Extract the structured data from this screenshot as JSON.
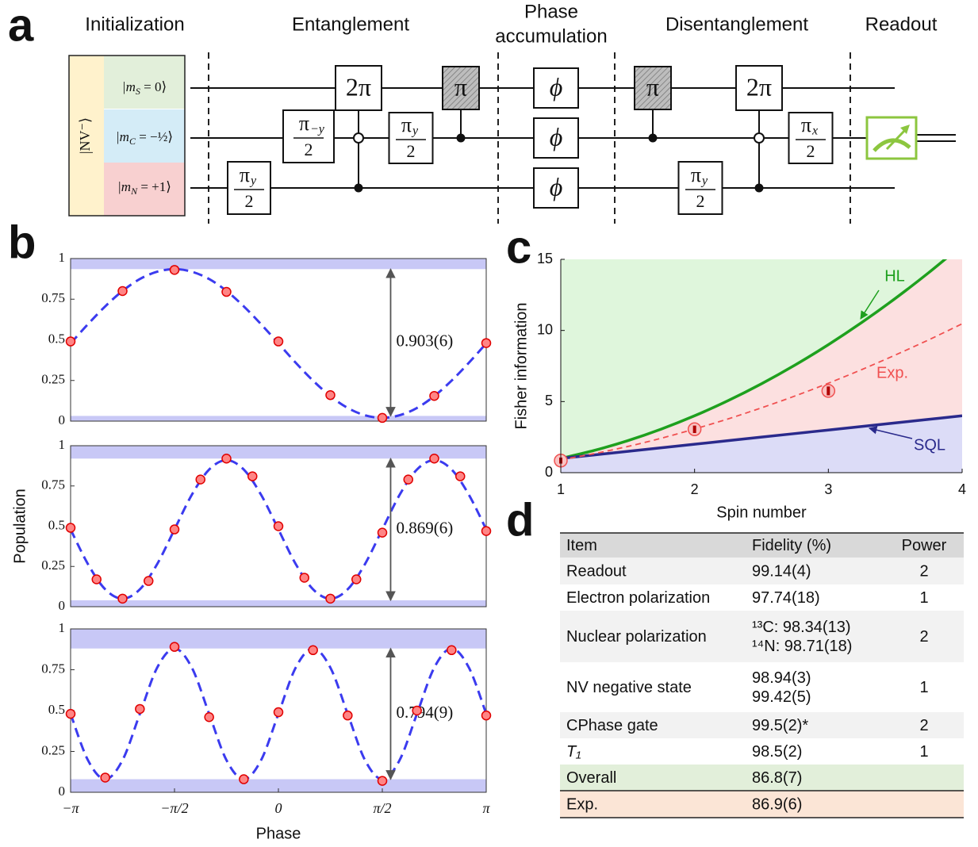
{
  "panel_labels": [
    "a",
    "b",
    "c",
    "d"
  ],
  "circuit": {
    "stages": [
      [
        "Initialization"
      ],
      [
        "Entanglement"
      ],
      [
        "Phase",
        "accumulation"
      ],
      [
        "Disentanglement"
      ],
      [
        "Readout"
      ]
    ],
    "register": "|NV⁻⟩",
    "states": [
      [
        "|m",
        "S",
        " = 0⟩"
      ],
      [
        "|m",
        "C",
        " = −½⟩"
      ],
      [
        "|m",
        "N",
        " = +1⟩"
      ]
    ],
    "gates": [
      {
        "num": "π",
        "sub": "y",
        "den": "2"
      },
      {
        "num": "π",
        "sub": "−y",
        "den": "2"
      },
      {
        "label": "2π"
      },
      {
        "num": "π",
        "sub": "y",
        "den": "2"
      },
      {
        "label": "π"
      },
      {
        "label": "ϕ"
      },
      {
        "label": "ϕ"
      },
      {
        "label": "ϕ"
      },
      {
        "label": "π"
      },
      {
        "num": "π",
        "sub": "y",
        "den": "2"
      },
      {
        "label": "2π"
      },
      {
        "num": "π",
        "sub": "x",
        "den": "2"
      }
    ]
  },
  "chart_data": [
    {
      "type": "scatter",
      "xlim": [
        -3.14159,
        3.14159
      ],
      "ylim": [
        0,
        1
      ],
      "yticks": [
        0,
        0.25,
        0.5,
        0.75,
        1
      ],
      "x": [
        -3.14159,
        -2.35619,
        -1.5708,
        -0.7854,
        0,
        0.7854,
        1.5708,
        2.35619,
        3.14159
      ],
      "values": [
        0.49,
        0.8,
        0.93,
        0.795,
        0.49,
        0.16,
        0.02,
        0.155,
        0.48
      ],
      "color": "#e00000",
      "fit_x": [
        -3.14159,
        -2.87979,
        -2.61799,
        -2.35619,
        -2.0944,
        -1.8326,
        -1.5708,
        -1.309,
        -1.0472,
        -0.7854,
        -0.5236,
        -0.2618,
        0,
        0.2618,
        0.5236,
        0.7854,
        1.0472,
        1.309,
        1.5708,
        1.8326,
        2.0944,
        2.35619,
        2.61799,
        2.87979,
        3.14159
      ],
      "fit": [
        0.478,
        0.596,
        0.706,
        0.801,
        0.874,
        0.919,
        0.935,
        0.919,
        0.874,
        0.801,
        0.706,
        0.596,
        0.478,
        0.359,
        0.249,
        0.154,
        0.081,
        0.036,
        0.02,
        0.036,
        0.081,
        0.154,
        0.249,
        0.359,
        0.478
      ],
      "fit_color": "#3b3bef",
      "bands": [
        [
          0.935,
          1
        ],
        [
          0,
          0.032
        ]
      ],
      "band_color": "#c8c8f6",
      "annotation": "0.903(6)"
    },
    {
      "type": "scatter",
      "ylabel": "Population",
      "xlim": [
        -3.14159,
        3.14159
      ],
      "ylim": [
        0,
        1
      ],
      "yticks": [
        0,
        0.25,
        0.5,
        0.75,
        1
      ],
      "x": [
        -3.14159,
        -2.74889,
        -2.35619,
        -1.9635,
        -1.5708,
        -1.1781,
        -0.7854,
        -0.3927,
        0,
        0.3927,
        0.7854,
        1.1781,
        1.5708,
        1.9635,
        2.35619,
        2.74889,
        3.14159
      ],
      "values": [
        0.49,
        0.17,
        0.05,
        0.16,
        0.48,
        0.79,
        0.92,
        0.81,
        0.5,
        0.18,
        0.05,
        0.17,
        0.46,
        0.79,
        0.92,
        0.81,
        0.47
      ],
      "color": "#e00000",
      "fit_x": [
        -3.14159,
        -2.87979,
        -2.61799,
        -2.35619,
        -2.0944,
        -1.8326,
        -1.5708,
        -1.309,
        -1.0472,
        -0.7854,
        -0.5236,
        -0.2618,
        0,
        0.2618,
        0.5236,
        0.7854,
        1.0472,
        1.309,
        1.5708,
        1.8326,
        2.0944,
        2.35619,
        2.61799,
        2.87979,
        3.14159
      ],
      "fit": [
        0.48,
        0.265,
        0.108,
        0.05,
        0.108,
        0.265,
        0.48,
        0.695,
        0.852,
        0.91,
        0.852,
        0.695,
        0.48,
        0.265,
        0.108,
        0.05,
        0.108,
        0.265,
        0.48,
        0.695,
        0.852,
        0.91,
        0.852,
        0.695,
        0.48
      ],
      "fit_color": "#3b3bef",
      "bands": [
        [
          0.92,
          1
        ],
        [
          0,
          0.04
        ]
      ],
      "band_color": "#c8c8f6",
      "annotation": "0.869(6)"
    },
    {
      "type": "scatter",
      "xlabel": "Phase",
      "xlim": [
        -3.14159,
        3.14159
      ],
      "ylim": [
        0,
        1
      ],
      "yticks": [
        0,
        0.25,
        0.5,
        0.75,
        1
      ],
      "xticks": [
        {
          "value": -3.14159,
          "label": "−π"
        },
        {
          "value": -1.5708,
          "label": "−π/2"
        },
        0,
        {
          "value": 1.5708,
          "label": "π/2"
        },
        {
          "value": 3.14159,
          "label": "π"
        }
      ],
      "x": [
        -3.14159,
        -2.61799,
        -2.0944,
        -1.5708,
        -1.0472,
        -0.5236,
        0,
        0.5236,
        1.0472,
        1.5708,
        2.0944,
        2.61799,
        3.14159
      ],
      "values": [
        0.48,
        0.09,
        0.51,
        0.89,
        0.46,
        0.08,
        0.49,
        0.87,
        0.47,
        0.07,
        0.5,
        0.87,
        0.47
      ],
      "color": "#e00000",
      "fit_x": [
        -3.14159,
        -2.87979,
        -2.61799,
        -2.35619,
        -2.0944,
        -1.8326,
        -1.5708,
        -1.309,
        -1.0472,
        -0.7854,
        -0.5236,
        -0.2618,
        0,
        0.2618,
        0.5236,
        0.7854,
        1.0472,
        1.309,
        1.5708,
        1.8326,
        2.0944,
        2.35619,
        2.61799,
        2.87979,
        3.14159
      ],
      "fit": [
        0.48,
        0.197,
        0.08,
        0.197,
        0.48,
        0.763,
        0.88,
        0.763,
        0.48,
        0.197,
        0.08,
        0.197,
        0.48,
        0.763,
        0.88,
        0.763,
        0.48,
        0.197,
        0.08,
        0.197,
        0.48,
        0.763,
        0.88,
        0.763,
        0.48
      ],
      "fit_color": "#3b3bef",
      "bands": [
        [
          0.88,
          1
        ],
        [
          0,
          0.08
        ]
      ],
      "band_color": "#c8c8f6",
      "annotation": "0.794(9)"
    },
    {
      "type": "line",
      "xlabel": "Spin number",
      "ylabel": "Fisher information",
      "xlim": [
        1,
        4
      ],
      "ylim": [
        0,
        15
      ],
      "xticks": [
        1,
        2,
        3,
        4
      ],
      "yticks": [
        0,
        5,
        10,
        15
      ],
      "background": "#dff6dc",
      "x": [
        1,
        1.25,
        1.5,
        1.75,
        2,
        2.25,
        2.5,
        2.75,
        3,
        3.25,
        3.5,
        3.75,
        4
      ],
      "series": [
        {
          "name": "HL",
          "color": "#1ea01e",
          "area": "#fce0e0",
          "values": [
            1,
            1.5625,
            2.25,
            3.0625,
            4,
            5.0625,
            6.25,
            7.5625,
            9,
            10.5625,
            12.25,
            14.0625,
            16
          ]
        },
        {
          "name": "SQL",
          "color": "#2a2a8c",
          "area": "#dcdcf7",
          "values": [
            1,
            1.25,
            1.5,
            1.75,
            2,
            2.25,
            2.5,
            2.75,
            3,
            3.25,
            3.5,
            3.75,
            4
          ]
        },
        {
          "name": "Exp.",
          "color": "#f05050",
          "dashed": true,
          "values": [
            0.9,
            1.34,
            1.84,
            2.42,
            3.07,
            3.78,
            4.56,
            5.39,
            6.29,
            7.25,
            8.27,
            9.34,
            10.47
          ]
        }
      ],
      "measured": {
        "x": [
          1,
          2,
          3
        ],
        "values": [
          0.85,
          3.05,
          5.75
        ],
        "errors": [
          0.1,
          0.15,
          0.2
        ],
        "color": "#f05050"
      }
    }
  ],
  "table": {
    "header": [
      "Item",
      "Fidelity (%)",
      "Power"
    ],
    "rows": [
      [
        "Readout",
        [
          "99.14(4)"
        ],
        2
      ],
      [
        "Electron polarization",
        [
          "97.74(18)"
        ],
        1
      ],
      [
        "Nuclear polarization",
        [
          "¹³C: 98.34(13)",
          "¹⁴N: 98.71(18)"
        ],
        2
      ],
      [
        "NV negative state",
        [
          "98.94(3)",
          "99.42(5)"
        ],
        1
      ],
      [
        "CPhase gate",
        [
          "99.5(2)*"
        ],
        2
      ],
      [
        "T₁",
        [
          "98.5(2)"
        ],
        1
      ],
      [
        "Overall",
        [
          "86.8(7)"
        ]
      ],
      [
        "Exp.",
        [
          "86.9(6)"
        ]
      ]
    ]
  }
}
